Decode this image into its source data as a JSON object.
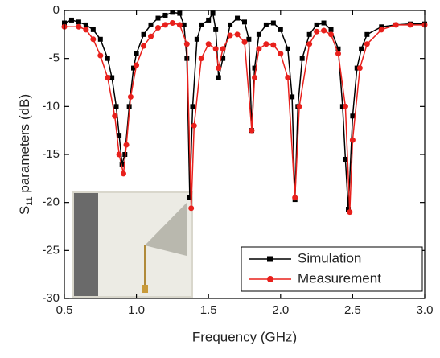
{
  "chart_data": {
    "type": "line",
    "xlabel": "Frequency (GHz)",
    "ylabel": {
      "main": "S",
      "sub": "11",
      "rest": " parameters (dB)"
    },
    "xlim": [
      0.5,
      3.0
    ],
    "xticks": [
      0.5,
      {
        "value": 1,
        "label": "1.0"
      },
      1.5,
      {
        "value": 2,
        "label": "2.0"
      },
      2.5,
      {
        "value": 3,
        "label": "3.0"
      }
    ],
    "ylim": [
      -30,
      0
    ],
    "yticks": [
      0,
      -5,
      -10,
      -15,
      -20,
      -25,
      -30
    ],
    "legend": "lower-right",
    "series": [
      {
        "name": "Simulation",
        "color": "#000000",
        "marker": "square",
        "x": [
          0.5,
          0.55,
          0.6,
          0.65,
          0.7,
          0.75,
          0.8,
          0.83,
          0.86,
          0.88,
          0.9,
          0.92,
          0.95,
          0.98,
          1.0,
          1.05,
          1.1,
          1.15,
          1.2,
          1.25,
          1.3,
          1.33,
          1.35,
          1.37,
          1.39,
          1.42,
          1.45,
          1.5,
          1.53,
          1.55,
          1.57,
          1.6,
          1.65,
          1.7,
          1.75,
          1.78,
          1.8,
          1.82,
          1.85,
          1.9,
          1.95,
          2.0,
          2.05,
          2.08,
          2.1,
          2.12,
          2.15,
          2.2,
          2.25,
          2.3,
          2.35,
          2.4,
          2.43,
          2.45,
          2.47,
          2.5,
          2.53,
          2.56,
          2.6,
          2.7,
          2.8,
          2.9,
          3.0
        ],
        "values": [
          -1.3,
          -1.0,
          -1.2,
          -1.5,
          -2,
          -3,
          -5,
          -7,
          -10,
          -13,
          -16,
          -15,
          -10,
          -6,
          -4.5,
          -2.5,
          -1.5,
          -0.8,
          -0.5,
          -0.2,
          -0.3,
          -1.5,
          -5,
          -19.5,
          -10,
          -3,
          -1.5,
          -1.0,
          -0.3,
          -2,
          -7,
          -5,
          -1.5,
          -0.8,
          -1.2,
          -3,
          -12.5,
          -6,
          -2.5,
          -1.5,
          -1.3,
          -2,
          -4,
          -9,
          -19.7,
          -10,
          -5,
          -2.5,
          -1.5,
          -1.3,
          -2,
          -4,
          -10,
          -15.5,
          -20.7,
          -11,
          -6,
          -4,
          -2.5,
          -1.7,
          -1.5,
          -1.4,
          -1.4
        ]
      },
      {
        "name": "Measurement",
        "color": "#e8201c",
        "marker": "circle",
        "x": [
          0.5,
          0.6,
          0.65,
          0.7,
          0.75,
          0.8,
          0.85,
          0.88,
          0.91,
          0.93,
          0.96,
          1.0,
          1.05,
          1.1,
          1.15,
          1.2,
          1.25,
          1.3,
          1.35,
          1.38,
          1.4,
          1.45,
          1.5,
          1.55,
          1.57,
          1.6,
          1.65,
          1.7,
          1.75,
          1.8,
          1.82,
          1.85,
          1.9,
          1.95,
          2.0,
          2.05,
          2.1,
          2.13,
          2.2,
          2.25,
          2.3,
          2.35,
          2.4,
          2.45,
          2.48,
          2.5,
          2.55,
          2.6,
          2.7,
          2.8,
          2.9,
          3.0
        ],
        "values": [
          -1.7,
          -1.7,
          -2,
          -3,
          -4.7,
          -7,
          -11,
          -15,
          -17,
          -14,
          -9,
          -5.7,
          -3.7,
          -2.7,
          -1.8,
          -1.5,
          -1.3,
          -1.5,
          -3.5,
          -20.6,
          -12,
          -5,
          -3.5,
          -4,
          -6,
          -4,
          -2.6,
          -2.5,
          -3.3,
          -12.5,
          -7,
          -4,
          -3.5,
          -3.6,
          -4.5,
          -7,
          -19.5,
          -10,
          -3.5,
          -2.2,
          -2.1,
          -2.5,
          -4.5,
          -10,
          -21,
          -13.5,
          -6,
          -3.5,
          -2,
          -1.5,
          -1.5,
          -1.5
        ]
      }
    ]
  }
}
